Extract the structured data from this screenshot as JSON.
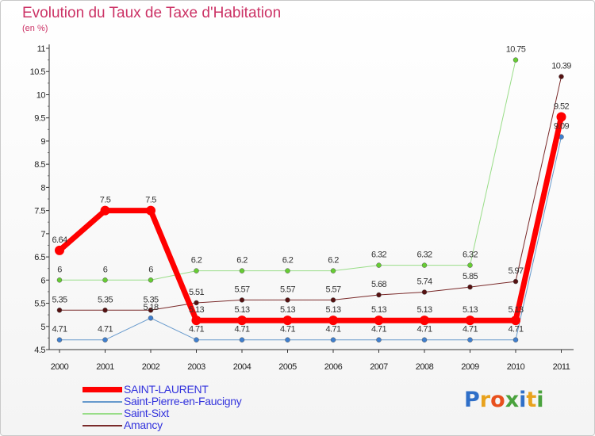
{
  "title": "Evolution du Taux de Taxe d'Habitation",
  "subtitle": "(en %)",
  "brand": {
    "text": "Proxiti",
    "letter_colors": [
      "#2f6fc8",
      "#e8a21d",
      "#e8501d",
      "#4aa23d",
      "#2f6fc8",
      "#e8a21d",
      "#4aa23d"
    ]
  },
  "chart_data": {
    "type": "line",
    "x": [
      "2000",
      "2001",
      "2002",
      "2003",
      "2004",
      "2005",
      "2006",
      "2007",
      "2008",
      "2009",
      "2010",
      "2011"
    ],
    "ylim": [
      4.5,
      11
    ],
    "yticks": [
      "4.5",
      "5",
      "5.5",
      "6",
      "6.5",
      "7",
      "7.5",
      "8",
      "8.5",
      "9",
      "9.5",
      "10",
      "10.5",
      "11"
    ],
    "grid": false,
    "legend_position": "bottom-left",
    "series": [
      {
        "name": "Saint-Pierre-en-Faucigny",
        "color": "#6699cc",
        "marker": "#3f7fcf",
        "width": 1,
        "values": [
          4.71,
          4.71,
          5.18,
          4.71,
          4.71,
          4.71,
          4.71,
          4.71,
          4.71,
          4.71,
          4.71,
          9.09
        ],
        "labels": [
          "4.71",
          "4.71",
          "5.18",
          "4.71",
          "4.71",
          "4.71",
          "4.71",
          "4.71",
          "4.71",
          "4.71",
          "4.71",
          "9.09"
        ]
      },
      {
        "name": "Saint-Sixt",
        "color": "#99dd88",
        "marker": "#66cc33",
        "width": 1,
        "values": [
          6,
          6,
          6,
          6.2,
          6.2,
          6.2,
          6.2,
          6.32,
          6.32,
          6.32,
          10.75,
          null
        ],
        "labels": [
          "6",
          "6",
          "6",
          "6.2",
          "6.2",
          "6.2",
          "6.2",
          "6.32",
          "6.32",
          "6.32",
          "10.75",
          ""
        ]
      },
      {
        "name": "Amancy",
        "color": "#7a2a2a",
        "marker": "#551111",
        "width": 1,
        "values": [
          5.35,
          5.35,
          5.35,
          5.51,
          5.57,
          5.57,
          5.57,
          5.68,
          5.74,
          5.85,
          5.97,
          10.39
        ],
        "labels": [
          "5.35",
          "5.35",
          "5.35",
          "5.51",
          "5.57",
          "5.57",
          "5.57",
          "5.68",
          "5.74",
          "5.85",
          "5.97",
          "10.39"
        ]
      },
      {
        "name": "SAINT-LAURENT",
        "color": "#ff0000",
        "marker": "#ff0000",
        "width": 7,
        "values": [
          6.64,
          7.5,
          7.5,
          5.13,
          5.13,
          5.13,
          5.13,
          5.13,
          5.13,
          5.13,
          5.13,
          9.52
        ],
        "labels": [
          "6.64",
          "7.5",
          "7.5",
          "5.13",
          "5.13",
          "5.13",
          "5.13",
          "5.13",
          "5.13",
          "5.13",
          "5.13",
          "9.52"
        ]
      }
    ]
  },
  "legend": [
    {
      "name": "SAINT-LAURENT",
      "color": "#ff0000",
      "width": 7
    },
    {
      "name": "Saint-Pierre-en-Faucigny",
      "color": "#6699cc",
      "width": 2
    },
    {
      "name": "Saint-Sixt",
      "color": "#99dd88",
      "width": 2
    },
    {
      "name": "Amancy",
      "color": "#7a2a2a",
      "width": 2
    }
  ]
}
